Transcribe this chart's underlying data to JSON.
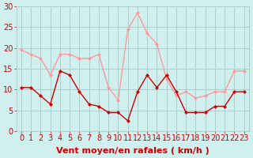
{
  "hours": [
    0,
    1,
    2,
    3,
    4,
    5,
    6,
    7,
    8,
    9,
    10,
    11,
    12,
    13,
    14,
    15,
    16,
    17,
    18,
    19,
    20,
    21,
    22,
    23
  ],
  "avg_wind": [
    10.5,
    10.5,
    8.5,
    6.5,
    14.5,
    13.5,
    9.5,
    6.5,
    6.0,
    4.5,
    4.5,
    2.5,
    9.5,
    13.5,
    10.5,
    13.5,
    9.5,
    4.5,
    4.5,
    4.5,
    6.0,
    6.0,
    9.5,
    9.5
  ],
  "gust_wind": [
    19.5,
    18.5,
    17.5,
    13.5,
    18.5,
    18.5,
    17.5,
    17.5,
    18.5,
    10.5,
    7.5,
    24.5,
    28.5,
    23.5,
    21.0,
    12.5,
    8.5,
    9.5,
    8.0,
    8.5,
    9.5,
    9.5,
    14.5,
    14.5
  ],
  "avg_color": "#cc0000",
  "gust_color": "#ff9999",
  "bg_color": "#d0f0f0",
  "grid_color": "#b0d0d0",
  "axis_label_color": "#cc0000",
  "xlabel": "Vent moyen/en rafales ( km/h )",
  "ylim": [
    0,
    30
  ],
  "yticks": [
    0,
    5,
    10,
    15,
    20,
    25,
    30
  ],
  "title_fontsize": 9,
  "label_fontsize": 8,
  "tick_fontsize": 7
}
